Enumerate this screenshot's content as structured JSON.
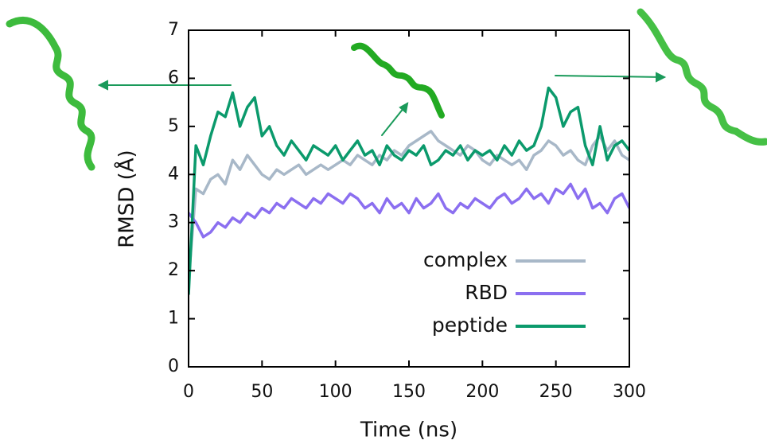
{
  "chart_data": {
    "type": "line",
    "x_label": "Time (ns)",
    "y_label": "RMSD (Å)",
    "xlim": [
      0,
      300
    ],
    "xticks": [
      0,
      50,
      100,
      150,
      200,
      250,
      300
    ],
    "ylim": [
      0,
      7
    ],
    "yticks": [
      0,
      1,
      2,
      3,
      4,
      5,
      6,
      7
    ],
    "legend": "lower right",
    "x": [
      0,
      5,
      10,
      15,
      20,
      25,
      30,
      35,
      40,
      45,
      50,
      55,
      60,
      65,
      70,
      75,
      80,
      85,
      90,
      95,
      100,
      105,
      110,
      115,
      120,
      125,
      130,
      135,
      140,
      145,
      150,
      155,
      160,
      165,
      170,
      175,
      180,
      185,
      190,
      195,
      200,
      205,
      210,
      215,
      220,
      225,
      230,
      235,
      240,
      245,
      250,
      255,
      260,
      265,
      270,
      275,
      280,
      285,
      290,
      295,
      300
    ],
    "series": [
      {
        "name": "complex",
        "color": "#a8b8c8",
        "values": [
          1.8,
          3.7,
          3.6,
          3.9,
          4.0,
          3.8,
          4.3,
          4.1,
          4.4,
          4.2,
          4.0,
          3.9,
          4.1,
          4.0,
          4.1,
          4.2,
          4.0,
          4.1,
          4.2,
          4.1,
          4.2,
          4.3,
          4.2,
          4.4,
          4.3,
          4.2,
          4.4,
          4.3,
          4.5,
          4.4,
          4.6,
          4.7,
          4.8,
          4.9,
          4.7,
          4.6,
          4.5,
          4.4,
          4.6,
          4.5,
          4.3,
          4.2,
          4.4,
          4.3,
          4.2,
          4.3,
          4.1,
          4.4,
          4.5,
          4.7,
          4.6,
          4.4,
          4.5,
          4.3,
          4.2,
          4.6,
          4.8,
          4.5,
          4.7,
          4.4,
          4.3
        ]
      },
      {
        "name": "RBD",
        "color": "#8b6ff0",
        "values": [
          3.2,
          3.0,
          2.7,
          2.8,
          3.0,
          2.9,
          3.1,
          3.0,
          3.2,
          3.1,
          3.3,
          3.2,
          3.4,
          3.3,
          3.5,
          3.4,
          3.3,
          3.5,
          3.4,
          3.6,
          3.5,
          3.4,
          3.6,
          3.5,
          3.3,
          3.4,
          3.2,
          3.5,
          3.3,
          3.4,
          3.2,
          3.5,
          3.3,
          3.4,
          3.6,
          3.3,
          3.2,
          3.4,
          3.3,
          3.5,
          3.4,
          3.3,
          3.5,
          3.6,
          3.4,
          3.5,
          3.7,
          3.5,
          3.6,
          3.4,
          3.7,
          3.6,
          3.8,
          3.5,
          3.7,
          3.3,
          3.4,
          3.2,
          3.5,
          3.6,
          3.3
        ]
      },
      {
        "name": "peptide",
        "color": "#0b9a6c",
        "values": [
          1.5,
          4.6,
          4.2,
          4.8,
          5.3,
          5.2,
          5.7,
          5.0,
          5.4,
          5.6,
          4.8,
          5.0,
          4.6,
          4.4,
          4.7,
          4.5,
          4.3,
          4.6,
          4.5,
          4.4,
          4.6,
          4.3,
          4.5,
          4.7,
          4.4,
          4.5,
          4.2,
          4.6,
          4.4,
          4.3,
          4.5,
          4.4,
          4.6,
          4.2,
          4.3,
          4.5,
          4.4,
          4.6,
          4.3,
          4.5,
          4.4,
          4.5,
          4.3,
          4.6,
          4.4,
          4.7,
          4.5,
          4.6,
          5.0,
          5.8,
          5.6,
          5.0,
          5.3,
          5.4,
          4.6,
          4.2,
          5.0,
          4.3,
          4.6,
          4.7,
          4.5
        ]
      }
    ]
  }
}
